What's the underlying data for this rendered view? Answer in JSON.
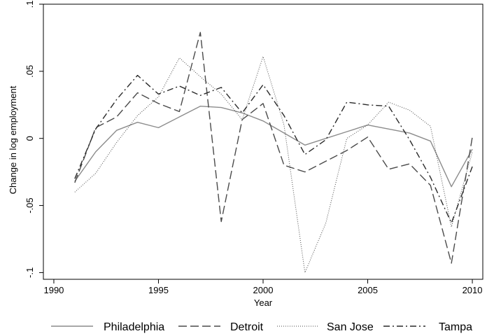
{
  "chart_data": {
    "type": "line",
    "title": "",
    "xlabel": "Year",
    "ylabel": "Change in log employment",
    "xlim": [
      1989.5,
      2010.5
    ],
    "ylim": [
      -0.105,
      0.1
    ],
    "x_ticks": [
      1990,
      1995,
      2000,
      2005,
      2010
    ],
    "x_tick_labels": [
      "1990",
      "1995",
      "2000",
      "2005",
      "2010"
    ],
    "y_ticks": [
      -0.1,
      -0.05,
      0,
      0.05,
      0.1
    ],
    "y_tick_labels": [
      "-.1",
      "-.05",
      "0",
      ".05",
      ".1"
    ],
    "grid": false,
    "legend_position": "bottom",
    "x": [
      1991,
      1992,
      1993,
      1994,
      1995,
      1996,
      1997,
      1998,
      1999,
      2000,
      2001,
      2002,
      2003,
      2004,
      2005,
      2006,
      2007,
      2008,
      2009,
      2010
    ],
    "series": [
      {
        "name": "Philadelphia",
        "color": "#8c8c8c",
        "style": "solid",
        "values": [
          -0.032,
          -0.01,
          0.006,
          0.012,
          0.008,
          0.016,
          0.024,
          0.023,
          0.019,
          0.013,
          0.004,
          -0.005,
          0.0,
          0.005,
          0.01,
          0.007,
          0.004,
          -0.002,
          -0.036,
          -0.008
        ]
      },
      {
        "name": "Detroit",
        "color": "#4a4a4a",
        "style": "dashed",
        "values": [
          -0.033,
          0.008,
          0.016,
          0.034,
          0.026,
          0.02,
          0.079,
          -0.062,
          0.014,
          0.026,
          -0.02,
          -0.025,
          -0.017,
          -0.009,
          0.001,
          -0.023,
          -0.019,
          -0.035,
          -0.093,
          0.001
        ]
      },
      {
        "name": "San Jose",
        "color": "#4a4a4a",
        "style": "dotted",
        "values": [
          -0.04,
          -0.026,
          -0.003,
          0.017,
          0.031,
          0.06,
          0.046,
          0.033,
          0.014,
          0.061,
          0.01,
          -0.1,
          -0.063,
          0.0,
          0.01,
          0.027,
          0.021,
          0.009,
          -0.066,
          -0.01
        ]
      },
      {
        "name": "Tampa",
        "color": "#2a2a2a",
        "style": "dashdot",
        "values": [
          -0.03,
          0.007,
          0.029,
          0.047,
          0.033,
          0.039,
          0.032,
          0.038,
          0.019,
          0.04,
          0.017,
          -0.012,
          -0.001,
          0.027,
          0.025,
          0.024,
          -0.001,
          -0.029,
          -0.063,
          -0.021
        ]
      }
    ]
  }
}
